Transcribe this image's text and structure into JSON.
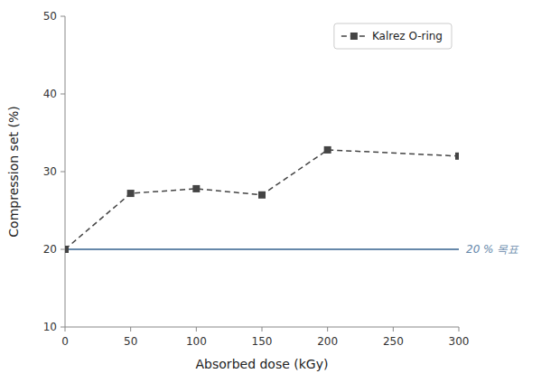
{
  "chart_data": {
    "type": "line",
    "x": [
      0,
      50,
      100,
      150,
      200,
      300
    ],
    "series": [
      {
        "name": "Kalrez O-ring",
        "color": "#444444",
        "line_style": "dashed",
        "marker": "square",
        "values": [
          20.0,
          27.2,
          27.8,
          27.0,
          32.8,
          32.0
        ]
      }
    ],
    "xlabel": "Absorbed dose (kGy)",
    "ylabel": "Compression set (%)",
    "xlim": [
      0,
      300
    ],
    "ylim": [
      10,
      50
    ],
    "xticks": [
      0,
      50,
      100,
      150,
      200,
      250,
      300
    ],
    "yticks": [
      10,
      20,
      30,
      40,
      50
    ],
    "reference_lines": [
      {
        "y": 20,
        "label": "20 % 목표",
        "color": "#6688aa"
      }
    ],
    "legend": "upper right",
    "grid": false
  }
}
